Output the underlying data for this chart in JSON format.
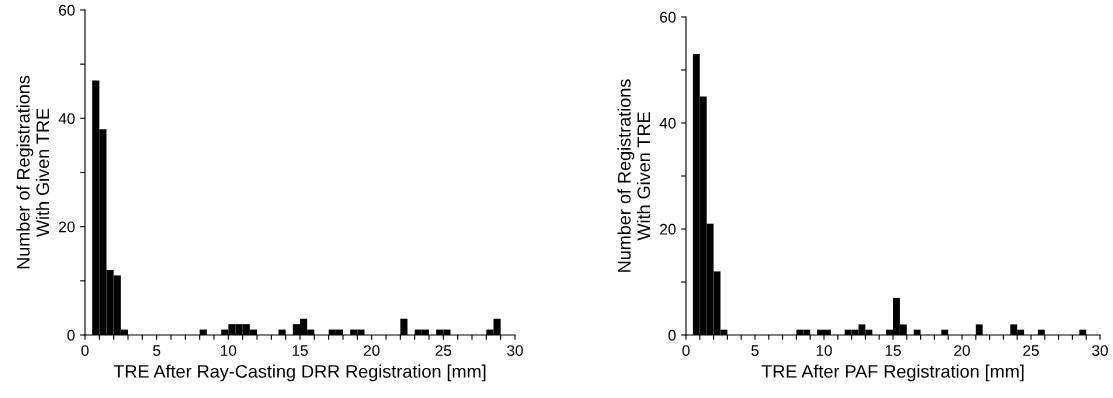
{
  "chart_data": [
    {
      "type": "histogram",
      "xlabel": "TRE After Ray-Casting DRR Registration [mm]",
      "ylabel": "Number of Registrations\nWith Given TRE",
      "color": "#000000",
      "bins": [
        0,
        0.5,
        1,
        1.5,
        2,
        2.5,
        3,
        3.5,
        4,
        4.5,
        5,
        5.5,
        6,
        6.5,
        7,
        7.5,
        8,
        8.5,
        9,
        9.5,
        10,
        10.5,
        11,
        11.5,
        12,
        12.5,
        13,
        13.5,
        14,
        14.5,
        15,
        15.5,
        16,
        16.5,
        17,
        17.5,
        18,
        18.5,
        19,
        19.5,
        20,
        20.5,
        21,
        21.5,
        22,
        22.5,
        23,
        23.5,
        24,
        24.5,
        25,
        25.5,
        26,
        26.5,
        27,
        27.5,
        28,
        28.5,
        29,
        29.5,
        30
      ],
      "values": [
        0,
        47,
        38,
        12,
        11,
        1,
        0,
        0,
        0,
        0,
        0,
        0,
        0,
        0,
        0,
        0,
        1,
        0,
        0,
        1,
        2,
        2,
        2,
        1,
        0,
        0,
        0,
        1,
        0,
        2,
        3,
        1,
        0,
        0,
        1,
        1,
        0,
        1,
        1,
        0,
        0,
        0,
        0,
        0,
        3,
        0,
        1,
        1,
        0,
        1,
        1,
        0,
        0,
        0,
        0,
        0,
        1,
        3,
        0,
        0
      ],
      "xlim": [
        0,
        30
      ],
      "ylim": [
        0,
        60
      ],
      "xticks": [
        0,
        {
          "value": 1,
          "label": null
        },
        {
          "value": 2,
          "label": null
        },
        {
          "value": 3,
          "label": null
        },
        {
          "value": 4,
          "label": null
        },
        5,
        {
          "value": 6,
          "label": null
        },
        {
          "value": 7,
          "label": null
        },
        {
          "value": 8,
          "label": null
        },
        {
          "value": 9,
          "label": null
        },
        10,
        {
          "value": 11,
          "label": null
        },
        {
          "value": 12,
          "label": null
        },
        {
          "value": 13,
          "label": null
        },
        {
          "value": 14,
          "label": null
        },
        15,
        {
          "value": 16,
          "label": null
        },
        {
          "value": 17,
          "label": null
        },
        {
          "value": 18,
          "label": null
        },
        {
          "value": 19,
          "label": null
        },
        20,
        {
          "value": 21,
          "label": null
        },
        {
          "value": 22,
          "label": null
        },
        {
          "value": 23,
          "label": null
        },
        {
          "value": 24,
          "label": null
        },
        25,
        {
          "value": 26,
          "label": null
        },
        {
          "value": 27,
          "label": null
        },
        {
          "value": 28,
          "label": null
        },
        {
          "value": 29,
          "label": null
        },
        30
      ],
      "yticks": [
        0,
        {
          "value": 10,
          "label": null
        },
        20,
        {
          "value": 30,
          "label": null
        },
        40,
        {
          "value": 50,
          "label": null
        },
        60
      ],
      "grid": false
    },
    {
      "type": "histogram",
      "xlabel": "TRE After PAF Registration [mm]",
      "ylabel": "Number of Registrations\nWith Given TRE",
      "color": "#000000",
      "bins": [
        0,
        0.5,
        1,
        1.5,
        2,
        2.5,
        3,
        3.5,
        4,
        4.5,
        5,
        5.5,
        6,
        6.5,
        7,
        7.5,
        8,
        8.5,
        9,
        9.5,
        10,
        10.5,
        11,
        11.5,
        12,
        12.5,
        13,
        13.5,
        14,
        14.5,
        15,
        15.5,
        16,
        16.5,
        17,
        17.5,
        18,
        18.5,
        19,
        19.5,
        20,
        20.5,
        21,
        21.5,
        22,
        22.5,
        23,
        23.5,
        24,
        24.5,
        25,
        25.5,
        26,
        26.5,
        27,
        27.5,
        28,
        28.5,
        29,
        29.5,
        30
      ],
      "values": [
        0,
        53,
        45,
        21,
        12,
        1,
        0,
        0,
        0,
        0,
        0,
        0,
        0,
        0,
        0,
        0,
        1,
        1,
        0,
        1,
        1,
        0,
        0,
        1,
        1,
        2,
        1,
        0,
        0,
        1,
        7,
        2,
        0,
        1,
        0,
        0,
        0,
        1,
        0,
        0,
        0,
        0,
        2,
        0,
        0,
        0,
        0,
        2,
        1,
        0,
        0,
        1,
        0,
        0,
        0,
        0,
        0,
        1,
        0,
        0
      ],
      "xlim": [
        0,
        30
      ],
      "ylim": [
        0,
        60
      ],
      "xticks": [
        0,
        {
          "value": 1,
          "label": null
        },
        {
          "value": 2,
          "label": null
        },
        {
          "value": 3,
          "label": null
        },
        {
          "value": 4,
          "label": null
        },
        5,
        {
          "value": 6,
          "label": null
        },
        {
          "value": 7,
          "label": null
        },
        {
          "value": 8,
          "label": null
        },
        {
          "value": 9,
          "label": null
        },
        10,
        {
          "value": 11,
          "label": null
        },
        {
          "value": 12,
          "label": null
        },
        {
          "value": 13,
          "label": null
        },
        {
          "value": 14,
          "label": null
        },
        15,
        {
          "value": 16,
          "label": null
        },
        {
          "value": 17,
          "label": null
        },
        {
          "value": 18,
          "label": null
        },
        {
          "value": 19,
          "label": null
        },
        20,
        {
          "value": 21,
          "label": null
        },
        {
          "value": 22,
          "label": null
        },
        {
          "value": 23,
          "label": null
        },
        {
          "value": 24,
          "label": null
        },
        25,
        {
          "value": 26,
          "label": null
        },
        {
          "value": 27,
          "label": null
        },
        {
          "value": 28,
          "label": null
        },
        {
          "value": 29,
          "label": null
        },
        30
      ],
      "yticks": [
        0,
        {
          "value": 10,
          "label": null
        },
        20,
        {
          "value": 30,
          "label": null
        },
        40,
        {
          "value": 50,
          "label": null
        },
        60
      ],
      "grid": false
    }
  ]
}
